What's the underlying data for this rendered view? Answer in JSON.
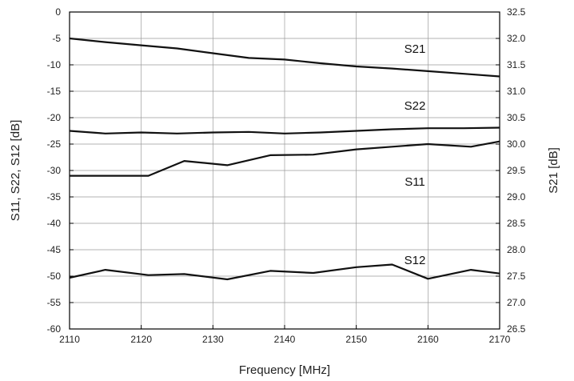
{
  "chart_data": {
    "type": "line",
    "xlabel": "Frequency [MHz]",
    "ylabel_left": "S11, S22, S12 [dB]",
    "ylabel_right": "S21 [dB]",
    "xlim": [
      2110,
      2170
    ],
    "ylim_left": [
      -60,
      0
    ],
    "ylim_right": [
      26.5,
      32.5
    ],
    "x_ticks": [
      2110,
      2120,
      2130,
      2140,
      2150,
      2160,
      2170
    ],
    "y_ticks_left": [
      0,
      -5,
      -10,
      -15,
      -20,
      -25,
      -30,
      -35,
      -40,
      -45,
      -50,
      -55,
      -60
    ],
    "y_ticks_right": [
      "32.5",
      "32.0",
      "31.5",
      "31.0",
      "30.5",
      "30.0",
      "29.5",
      "29.0",
      "28.5",
      "28.0",
      "27.5",
      "27.0",
      "26.5"
    ],
    "grid": true,
    "series": [
      {
        "name": "S21",
        "axis": "right",
        "x": [
          2110,
          2115,
          2120,
          2125,
          2130,
          2135,
          2140,
          2145,
          2150,
          2155,
          2160,
          2165,
          2170
        ],
        "y": [
          32.0,
          31.93,
          31.87,
          31.81,
          31.72,
          31.63,
          31.6,
          31.53,
          31.47,
          31.43,
          31.38,
          31.33,
          31.28
        ]
      },
      {
        "name": "S22",
        "axis": "left",
        "x": [
          2110,
          2115,
          2120,
          2125,
          2130,
          2135,
          2140,
          2145,
          2150,
          2155,
          2160,
          2165,
          2170
        ],
        "y": [
          -22.5,
          -23.0,
          -22.8,
          -23.0,
          -22.8,
          -22.7,
          -23.0,
          -22.8,
          -22.5,
          -22.2,
          -22.0,
          -22.0,
          -21.9
        ]
      },
      {
        "name": "S11",
        "axis": "left",
        "x": [
          2110,
          2115,
          2121,
          2126,
          2132,
          2138,
          2144,
          2150,
          2155,
          2160,
          2166,
          2170
        ],
        "y": [
          -31.0,
          -31.0,
          -31.0,
          -28.2,
          -29.0,
          -27.1,
          -27.0,
          -26.0,
          -25.5,
          -25.0,
          -25.5,
          -24.5
        ]
      },
      {
        "name": "S12",
        "axis": "left",
        "x": [
          2110,
          2115,
          2121,
          2126,
          2132,
          2138,
          2144,
          2150,
          2155,
          2160,
          2166,
          2170
        ],
        "y": [
          -50.3,
          -48.8,
          -49.8,
          -49.6,
          -50.6,
          -49.0,
          -49.4,
          -48.3,
          -47.8,
          -50.5,
          -48.8,
          -49.5
        ]
      }
    ]
  }
}
